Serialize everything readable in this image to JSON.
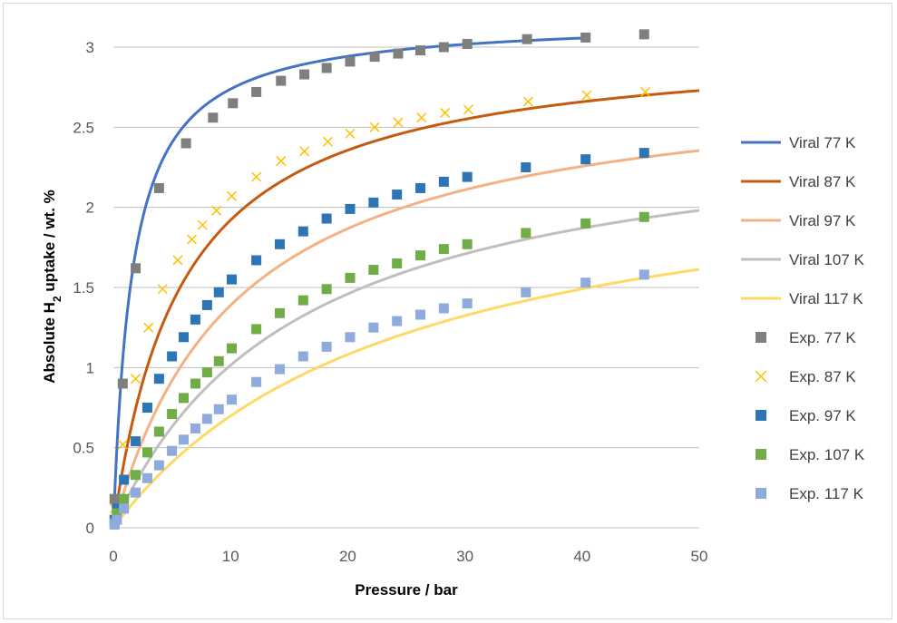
{
  "chart_data": {
    "type": "scatter",
    "title": "",
    "xlabel": "Pressure / bar",
    "ylabel_parts": [
      "Absolute H",
      "2",
      " uptake / wt. %"
    ],
    "xlim": [
      0,
      50
    ],
    "ylim": [
      0,
      3
    ],
    "xticks": [
      "0",
      "10",
      "20",
      "30",
      "40",
      "50"
    ],
    "yticks": [
      "0",
      "0.5",
      "1",
      "1.5",
      "2",
      "2.5",
      "3"
    ],
    "grid": "horizontal",
    "legend_position": "right",
    "fits": [
      {
        "name": "Viral 77 K",
        "color": "#4472c4",
        "qmax": 3.18,
        "b": 0.62,
        "x_end": 40.5
      },
      {
        "name": "Viral 87 K",
        "color": "#c55a11",
        "qmax": 3.05,
        "b": 0.17,
        "x_end": 50
      },
      {
        "name": "Viral 97 K",
        "color": "#f4b183",
        "qmax": 2.85,
        "b": 0.095,
        "x_end": 50
      },
      {
        "name": "Viral 107 K",
        "color": "#bfbfbf",
        "qmax": 2.6,
        "b": 0.064,
        "x_end": 50
      },
      {
        "name": "Viral 117 K",
        "color": "#ffd966",
        "qmax": 2.4,
        "b": 0.041,
        "x_end": 50
      }
    ],
    "series": [
      {
        "name": "Exp. 77 K",
        "marker": "square",
        "color": "#7f7f7f",
        "x": [
          0.1,
          0.8,
          1.9,
          3.9,
          6.2,
          8.5,
          10.2,
          12.2,
          14.3,
          16.3,
          18.2,
          20.2,
          22.3,
          24.3,
          26.2,
          28.2,
          30.2,
          35.3,
          40.3,
          45.3
        ],
        "y": [
          0.18,
          0.9,
          1.62,
          2.12,
          2.4,
          2.56,
          2.65,
          2.72,
          2.79,
          2.83,
          2.87,
          2.91,
          2.94,
          2.96,
          2.98,
          3.0,
          3.02,
          3.05,
          3.06,
          3.08
        ]
      },
      {
        "name": "Exp. 87 K",
        "marker": "x",
        "color": "#ffc000",
        "x": [
          0.1,
          0.8,
          1.9,
          3.0,
          4.2,
          5.5,
          6.7,
          7.6,
          8.8,
          10.1,
          12.2,
          14.3,
          16.3,
          18.3,
          20.2,
          22.3,
          24.3,
          26.3,
          28.3,
          30.3,
          35.4,
          40.4,
          45.4
        ],
        "y": [
          0.12,
          0.52,
          0.93,
          1.25,
          1.49,
          1.67,
          1.8,
          1.89,
          1.98,
          2.07,
          2.19,
          2.29,
          2.35,
          2.41,
          2.46,
          2.5,
          2.53,
          2.56,
          2.59,
          2.61,
          2.66,
          2.7,
          2.72
        ]
      },
      {
        "name": "Exp. 97 K",
        "marker": "square",
        "color": "#2e75b6",
        "x": [
          0.1,
          0.3,
          0.9,
          1.9,
          2.9,
          3.9,
          5.0,
          6.0,
          7.0,
          8.0,
          9.0,
          10.1,
          12.2,
          14.2,
          16.2,
          18.2,
          20.2,
          22.2,
          24.2,
          26.2,
          28.2,
          30.2,
          35.2,
          40.3,
          45.3
        ],
        "y": [
          0.05,
          0.12,
          0.3,
          0.54,
          0.75,
          0.93,
          1.07,
          1.19,
          1.3,
          1.39,
          1.47,
          1.55,
          1.67,
          1.77,
          1.85,
          1.93,
          1.99,
          2.03,
          2.08,
          2.12,
          2.16,
          2.19,
          2.25,
          2.3,
          2.34
        ]
      },
      {
        "name": "Exp. 107 K",
        "marker": "square",
        "color": "#70ad47",
        "x": [
          0.1,
          0.3,
          0.9,
          1.9,
          2.9,
          3.9,
          5.0,
          6.0,
          7.0,
          8.0,
          9.0,
          10.1,
          12.2,
          14.2,
          16.2,
          18.2,
          20.2,
          22.2,
          24.2,
          26.2,
          28.2,
          30.2,
          35.2,
          40.3,
          45.3
        ],
        "y": [
          0.03,
          0.09,
          0.18,
          0.33,
          0.47,
          0.6,
          0.71,
          0.81,
          0.9,
          0.97,
          1.04,
          1.12,
          1.24,
          1.34,
          1.42,
          1.49,
          1.56,
          1.61,
          1.65,
          1.7,
          1.74,
          1.77,
          1.84,
          1.9,
          1.94
        ]
      },
      {
        "name": "Exp. 117 K",
        "marker": "square",
        "color": "#8faadc",
        "x": [
          0.1,
          0.3,
          0.9,
          1.9,
          2.9,
          3.9,
          5.0,
          6.0,
          7.0,
          8.0,
          9.0,
          10.1,
          12.2,
          14.2,
          16.2,
          18.2,
          20.2,
          22.2,
          24.2,
          26.2,
          28.2,
          30.2,
          35.2,
          40.3,
          45.3
        ],
        "y": [
          0.02,
          0.05,
          0.12,
          0.22,
          0.31,
          0.39,
          0.48,
          0.55,
          0.62,
          0.68,
          0.74,
          0.8,
          0.91,
          0.99,
          1.07,
          1.13,
          1.19,
          1.25,
          1.29,
          1.33,
          1.37,
          1.4,
          1.47,
          1.53,
          1.58
        ]
      }
    ]
  }
}
